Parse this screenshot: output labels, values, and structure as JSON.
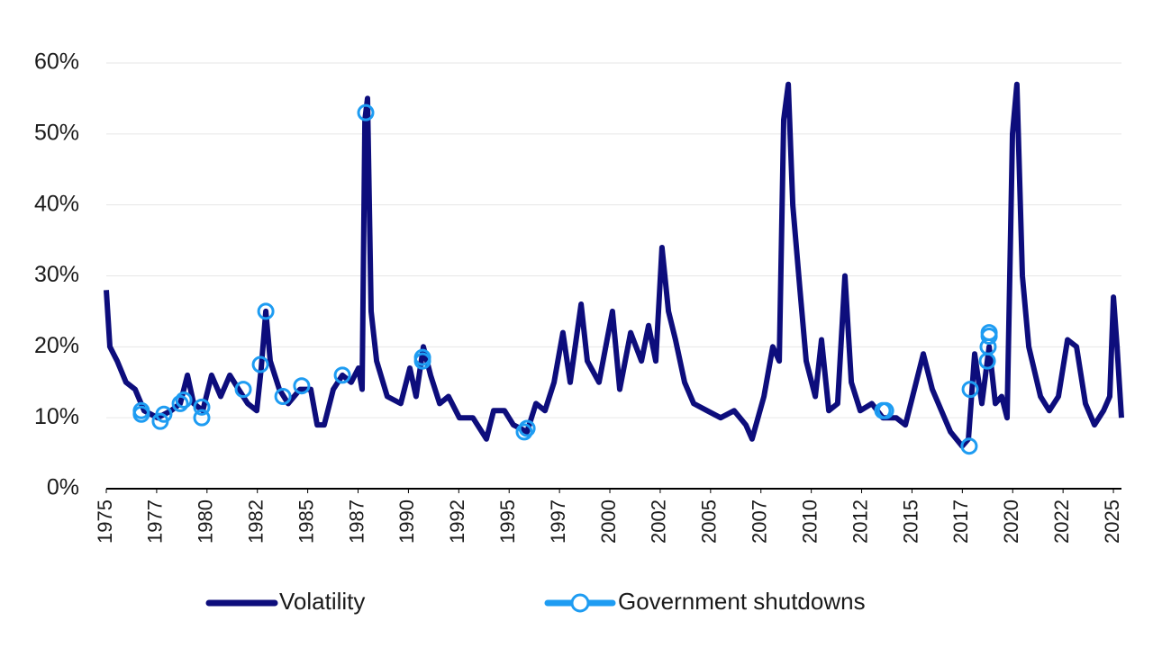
{
  "chart_data": {
    "type": "line",
    "ylim": [
      0,
      60
    ],
    "yticks": [
      {
        "value": 0,
        "label": "0%"
      },
      {
        "value": 10,
        "label": "10%"
      },
      {
        "value": 20,
        "label": "20%"
      },
      {
        "value": 30,
        "label": "30%"
      },
      {
        "value": 40,
        "label": "40%"
      },
      {
        "value": 50,
        "label": "50%"
      },
      {
        "value": 60,
        "label": "60%"
      }
    ],
    "xlim": [
      1975,
      2025.4
    ],
    "xticks": [
      1975,
      {
        "value": 1977.5,
        "label": "1977"
      },
      1980,
      {
        "value": 1982.5,
        "label": "1982"
      },
      1985,
      {
        "value": 1987.5,
        "label": "1987"
      },
      1990,
      {
        "value": 1992.5,
        "label": "1992"
      },
      1995,
      {
        "value": 1997.5,
        "label": "1997"
      },
      2000,
      {
        "value": 2002.5,
        "label": "2002"
      },
      2005,
      {
        "value": 2007.5,
        "label": "2007"
      },
      2010,
      {
        "value": 2012.5,
        "label": "2012"
      },
      2015,
      {
        "value": 2017.5,
        "label": "2017"
      },
      2020,
      {
        "value": 2022.5,
        "label": "2022"
      },
      2025
    ],
    "grid": true,
    "legend": "bottom",
    "series": [
      {
        "name": "Volatility",
        "color": "#0d0d7c",
        "x": [
          1975.0,
          1975.18,
          1975.54,
          1975.98,
          1976.43,
          1976.88,
          1977.55,
          1978.22,
          1978.67,
          1979.03,
          1979.34,
          1979.79,
          1980.23,
          1980.68,
          1981.13,
          1981.57,
          1982.02,
          1982.47,
          1982.69,
          1982.92,
          1983.14,
          1983.59,
          1984.03,
          1984.62,
          1985.15,
          1985.47,
          1985.82,
          1986.27,
          1986.72,
          1987.16,
          1987.52,
          1987.7,
          1987.84,
          1987.97,
          1988.15,
          1988.42,
          1988.95,
          1989.62,
          1990.07,
          1990.38,
          1990.74,
          1991.1,
          1991.55,
          1991.99,
          1992.53,
          1993.2,
          1993.87,
          1994.23,
          1994.77,
          1995.21,
          1995.89,
          1996.33,
          1996.78,
          1997.23,
          1997.67,
          1998.03,
          1998.57,
          1998.88,
          1999.46,
          2000.13,
          2000.49,
          2001.03,
          2001.57,
          2001.92,
          2002.28,
          2002.59,
          2002.91,
          2003.26,
          2003.71,
          2004.16,
          2004.83,
          2005.5,
          2006.17,
          2006.75,
          2007.06,
          2007.65,
          2008.09,
          2008.41,
          2008.63,
          2008.86,
          2009.08,
          2009.44,
          2009.75,
          2010.2,
          2010.51,
          2010.87,
          2011.31,
          2011.67,
          2011.99,
          2012.43,
          2013.01,
          2013.55,
          2014.22,
          2014.67,
          2015.12,
          2015.56,
          2016.01,
          2016.46,
          2016.91,
          2017.49,
          2017.8,
          2018.11,
          2018.47,
          2018.83,
          2019.14,
          2019.45,
          2019.72,
          2019.99,
          2020.21,
          2020.48,
          2020.8,
          2021.38,
          2021.82,
          2022.27,
          2022.72,
          2023.17,
          2023.61,
          2024.06,
          2024.51,
          2024.82,
          2025.0,
          2025.18,
          2025.4
        ],
        "values": [
          28,
          20,
          18,
          15,
          14,
          11,
          10,
          11,
          12,
          16,
          12,
          11,
          16,
          13,
          16,
          14,
          12,
          11,
          17,
          25,
          18,
          14,
          12,
          14,
          14,
          9,
          9,
          14,
          16,
          15,
          17,
          14,
          52,
          55,
          25,
          18,
          13,
          12,
          17,
          13,
          20,
          16,
          12,
          13,
          10,
          10,
          7,
          11,
          11,
          9,
          8,
          12,
          11,
          15,
          22,
          15,
          26,
          18,
          15,
          25,
          14,
          22,
          18,
          23,
          18,
          34,
          25,
          21,
          15,
          12,
          11,
          10,
          11,
          9,
          7,
          13,
          20,
          18,
          52,
          57,
          40,
          28,
          18,
          13,
          21,
          11,
          12,
          30,
          15,
          11,
          12,
          10,
          10,
          9,
          14,
          19,
          14,
          11,
          8,
          6,
          7,
          19,
          12,
          20,
          12,
          13,
          10,
          50,
          57,
          30,
          20,
          13,
          11,
          13,
          21,
          20,
          12,
          9,
          11,
          13,
          27,
          20,
          10
        ]
      },
      {
        "name": "Government shutdowns",
        "color": "#1e9cf2",
        "x": [
          1976.74,
          1976.74,
          1977.68,
          1977.86,
          1978.67,
          1978.85,
          1979.74,
          1979.74,
          1981.8,
          1982.65,
          1982.92,
          1983.77,
          1984.7,
          1986.72,
          1987.88,
          1990.7,
          1990.7,
          1995.75,
          1995.89,
          2013.55,
          2013.69,
          2017.84,
          2017.89,
          2018.74,
          2018.78,
          2018.83,
          2018.83
        ],
        "values": [
          10.5,
          11,
          9.5,
          10.5,
          12,
          12.5,
          10,
          11.5,
          14,
          17.5,
          25,
          13,
          14.5,
          16,
          53,
          18,
          18.5,
          8,
          8.5,
          11,
          11,
          6,
          14,
          18,
          20,
          22,
          21.5
        ]
      }
    ]
  }
}
